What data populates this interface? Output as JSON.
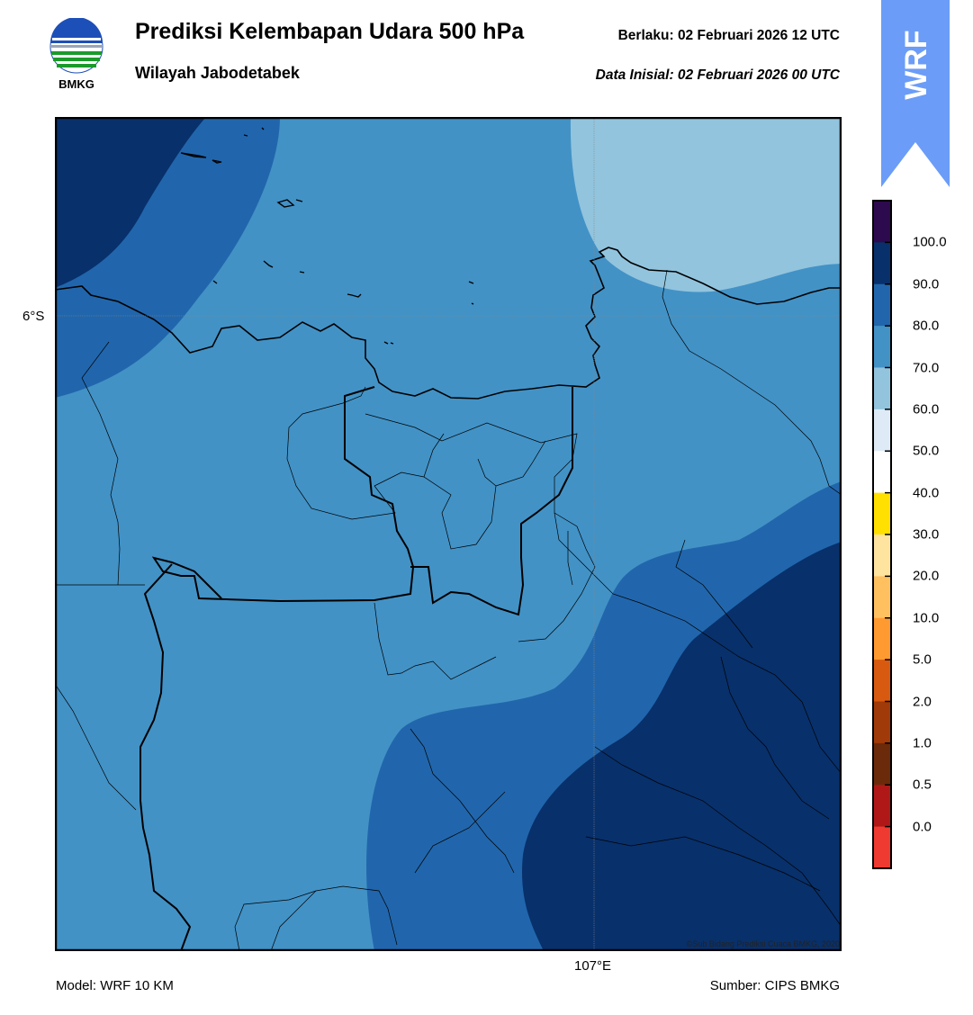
{
  "header": {
    "title": "Prediksi Kelembapan Udara 500 hPa",
    "subtitle": "Wilayah Jabodetabek",
    "valid_time": "Berlaku:  02 Februari 2026 12 UTC",
    "init_time": "Data Inisial:  02 Februari 2026 00 UTC"
  },
  "logo": {
    "text": "BMKG",
    "icon": "bmkg-logo"
  },
  "badge": {
    "text": "WRF",
    "color": "#6b9cf7"
  },
  "map": {
    "lat_label": "6°S",
    "lon_label": "107°E",
    "copyright": "©Sub Bidang Prediksi Cuaca BMKG, 2020",
    "colors": {
      "70-80": "#4292c6",
      "80-90": "#2166ac",
      "90-100": "#08306b",
      "60-70": "#92c4de"
    }
  },
  "colorbar": {
    "levels": [
      "100.0",
      "90.0",
      "80.0",
      "70.0",
      "60.0",
      "50.0",
      "40.0",
      "30.0",
      "20.0",
      "10.0",
      "5.0",
      "2.0",
      "1.0",
      "0.5",
      "0.0"
    ],
    "colors": [
      "#2d0a4e",
      "#08306b",
      "#2166ac",
      "#4292c6",
      "#92c4de",
      "#deebf7",
      "#ffffff",
      "#ffe000",
      "#ffe4a0",
      "#ffc060",
      "#ff9a30",
      "#d85a10",
      "#a03a08",
      "#6b2a0a",
      "#b01818",
      "#ee3a30"
    ]
  },
  "footer": {
    "model": "Model: WRF 10 KM",
    "source": "Sumber: CIPS BMKG"
  }
}
